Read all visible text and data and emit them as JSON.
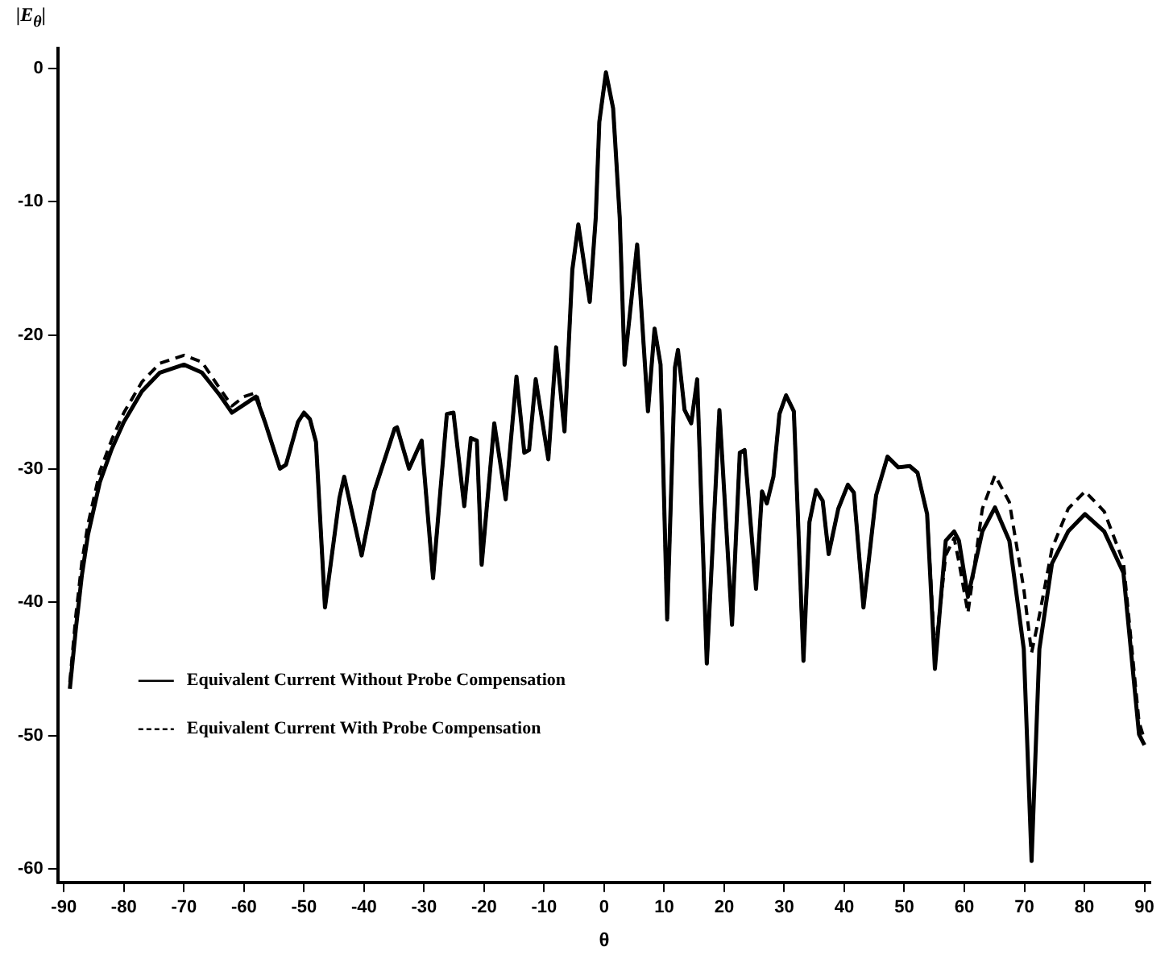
{
  "chart_data": {
    "type": "line",
    "xlabel": "θ",
    "ylabel": "|E$_{θ}$|",
    "x": [
      -89,
      -88,
      -87,
      -86,
      -84,
      -82,
      -80,
      -77,
      -74,
      -70,
      -67,
      -64,
      -62,
      -60,
      -58,
      -56.5,
      -54,
      -53,
      -51,
      -50,
      -49,
      -48,
      -46.5,
      -44.1,
      -43.3,
      -40.4,
      -38.3,
      -34.9,
      -34.5,
      -32.5,
      -30.4,
      -28.5,
      -26.2,
      -25.1,
      -23.3,
      -22.2,
      -21.2,
      -20.4,
      -18.3,
      -16.4,
      -14.6,
      -13.3,
      -12.5,
      -11.4,
      -9.3,
      -8,
      -6.6,
      -5.3,
      -4.3,
      -2.4,
      -1.4,
      -0.8,
      0.3,
      1.5,
      2.6,
      3.4,
      5.5,
      7.3,
      8.4,
      9.4,
      10.5,
      11.8,
      12.3,
      13.4,
      14.5,
      15.5,
      17.1,
      19.2,
      21.3,
      22.6,
      23.4,
      25.3,
      26.3,
      27.1,
      28.2,
      29.2,
      30.3,
      31.6,
      33.2,
      34.2,
      35.3,
      36.4,
      37.4,
      39,
      40.6,
      41.6,
      43.2,
      45.3,
      47.2,
      49,
      50.9,
      52.2,
      53.8,
      55.1,
      56.9,
      58.3,
      59.1,
      60.6,
      63,
      65.1,
      67.5,
      69.9,
      71.2,
      72.5,
      74.6,
      77.3,
      80.1,
      83.3,
      86.5,
      89.1,
      90
    ],
    "series": [
      {
        "name": "Equivalent Current Without Probe Compensation",
        "color": "#000000",
        "line_style": "solid",
        "values": [
          -46.5,
          -42,
          -38,
          -35,
          -31,
          -28.5,
          -26.5,
          -24.2,
          -22.8,
          -22.2,
          -22.8,
          -24.5,
          -25.8,
          -25.2,
          -24.6,
          -26.5,
          -30,
          -29.7,
          -26.5,
          -25.8,
          -26.3,
          -28,
          -40.4,
          -32.2,
          -30.6,
          -36.5,
          -31.7,
          -27,
          -26.9,
          -30,
          -27.9,
          -38.2,
          -25.9,
          -25.8,
          -32.8,
          -27.7,
          -27.9,
          -37.2,
          -26.6,
          -32.3,
          -23.1,
          -28.8,
          -28.6,
          -23.3,
          -29.3,
          -20.9,
          -27.2,
          -15.1,
          -11.7,
          -17.5,
          -11.2,
          -4,
          -0.3,
          -3,
          -11.2,
          -22.2,
          -13.2,
          -25.7,
          -19.5,
          -22.2,
          -41.3,
          -22.4,
          -21.1,
          -25.6,
          -26.6,
          -23.3,
          -44.6,
          -25.6,
          -41.7,
          -28.8,
          -28.6,
          -39,
          -31.7,
          -32.6,
          -30.6,
          -25.9,
          -24.5,
          -25.7,
          -44.4,
          -34,
          -31.6,
          -32.4,
          -36.4,
          -33,
          -31.2,
          -31.8,
          -40.4,
          -32,
          -29.1,
          -29.9,
          -29.8,
          -30.3,
          -33.4,
          -45,
          -35.4,
          -34.7,
          -35.4,
          -39.6,
          -34.7,
          -32.9,
          -35.4,
          -43.5,
          -59.4,
          -43.5,
          -37.1,
          -34.7,
          -33.4,
          -34.7,
          -37.8,
          -49.9,
          -50.7
        ]
      },
      {
        "name": "Equivalent Current With Probe Compensation",
        "color": "#000000",
        "line_style": "dashed",
        "values": [
          -46,
          -41,
          -37,
          -34.2,
          -30.2,
          -27.8,
          -25.8,
          -23.5,
          -22.1,
          -21.5,
          -22,
          -24,
          -25.3,
          -24.6,
          -24.3,
          -26.5,
          -30,
          -29.7,
          -26.5,
          -25.8,
          -26.3,
          -28,
          -40.4,
          -32.2,
          -30.6,
          -36.5,
          -31.7,
          -27,
          -26.9,
          -30,
          -27.9,
          -38.2,
          -25.9,
          -25.8,
          -32.8,
          -27.7,
          -27.9,
          -37.2,
          -26.6,
          -32.3,
          -23.1,
          -28.8,
          -28.6,
          -23.3,
          -29.3,
          -20.9,
          -27.2,
          -15.1,
          -11.7,
          -17.5,
          -11.2,
          -4,
          -0.3,
          -3,
          -11.2,
          -22.2,
          -13.2,
          -25.7,
          -19.5,
          -22.2,
          -41.3,
          -22.4,
          -21.1,
          -25.6,
          -26.6,
          -23.3,
          -44.6,
          -25.6,
          -41.7,
          -28.8,
          -28.6,
          -39,
          -31.7,
          -32.6,
          -30.6,
          -25.9,
          -24.5,
          -25.7,
          -44.4,
          -34,
          -31.6,
          -32.4,
          -36.4,
          -33,
          -31.2,
          -31.8,
          -40.4,
          -32,
          -29.1,
          -29.9,
          -29.8,
          -30.3,
          -33.4,
          -44,
          -36.5,
          -35.2,
          -37,
          -40.8,
          -33,
          -30.5,
          -32.5,
          -39,
          -43.8,
          -41,
          -36,
          -33,
          -31.7,
          -33.2,
          -37,
          -49,
          -50.3
        ]
      }
    ],
    "xlim": [
      -91,
      91
    ],
    "xticks": [
      -90,
      -80,
      -70,
      -60,
      -50,
      -40,
      -30,
      -20,
      -10,
      0,
      10,
      20,
      30,
      40,
      50,
      60,
      70,
      80,
      90
    ],
    "ylim": [
      -61,
      1.5
    ],
    "yticks": [
      0,
      -10,
      -20,
      -30,
      -40,
      -50,
      -60
    ],
    "grid": false,
    "legend": "bottom left",
    "marker": "none"
  }
}
